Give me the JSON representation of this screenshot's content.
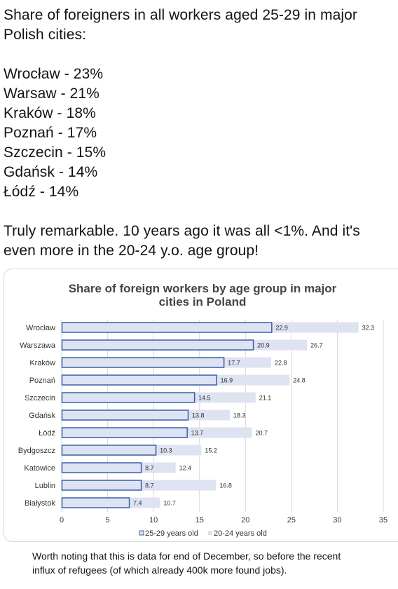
{
  "tweet": {
    "intro": "Share of foreigners in all workers aged 25-29 in major",
    "intro_line2": "Polish cities:",
    "list": [
      "Wrocław - 23%",
      "Warsaw - 21%",
      "Kraków - 18%",
      "Poznań - 17%",
      "Szczecin - 15%",
      "Gdańsk - 14%",
      "Łódź - 14%"
    ],
    "outro_line1": "Truly remarkable. 10 years ago it was all <1%. And it's",
    "outro_line2": "even more in the 20-24 y.o. age group!"
  },
  "footnote": {
    "line1": "Worth noting that this is data for end of December, so before the recent",
    "line2": "influx of refugees (of which already 400k more found jobs)."
  },
  "colors": {
    "series1_fill": "#dce3f3",
    "series1_stroke": "#3c5fa8",
    "series2_fill": "#dde3f1",
    "grid": "#d9d9d9",
    "text": "#333333"
  },
  "chart_data": {
    "type": "bar",
    "orientation": "horizontal",
    "title_line1": "Share of foreign workers by age group in major",
    "title_line2": "cities in Poland",
    "categories": [
      "Wrocław",
      "Warszawa",
      "Kraków",
      "Poznań",
      "Szczecin",
      "Gdańsk",
      "Łódź",
      "Bydgoszcz",
      "Katowice",
      "Lublin",
      "Białystok"
    ],
    "series": [
      {
        "name": "25-29 years old",
        "values": [
          22.9,
          20.9,
          17.7,
          16.9,
          14.5,
          13.8,
          13.7,
          10.3,
          8.7,
          8.7,
          7.4
        ]
      },
      {
        "name": "20-24 years old",
        "values": [
          32.3,
          26.7,
          22.8,
          24.8,
          21.1,
          18.3,
          20.7,
          15.2,
          12.4,
          16.8,
          10.7
        ]
      }
    ],
    "xlim": [
      0,
      35
    ],
    "xticks": [
      0,
      5,
      10,
      15,
      20,
      25,
      30,
      35
    ],
    "grid": true,
    "legend_position": "bottom"
  }
}
